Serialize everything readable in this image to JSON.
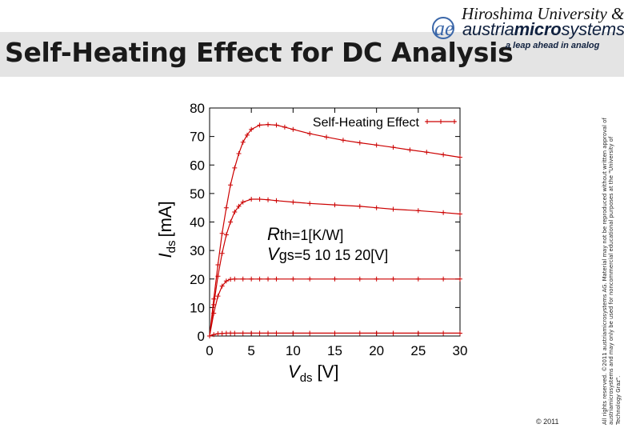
{
  "slide": {
    "title": "Self-Heating Effect for DC Analysis",
    "logo": {
      "university": "Hiroshima University &",
      "company_regular": "austria",
      "company_bold": "micro",
      "company_suffix": "systems",
      "tagline": "a leap ahead in analog",
      "monogram": "ae",
      "brand_color": "#10213f",
      "mark_color": "#3b67a9"
    },
    "side_notice": "All rights reserved. ©2011 austriamicrosystems AG. Material may not be reproduced without written approval of austriamicrosystems and may only be used for noncommercial educational purposes at the \"University of Technology Graz\".",
    "footer": {
      "copyright": "© 2011",
      "line_color": "#1a3e86"
    }
  },
  "chart_data": {
    "type": "line",
    "legend": "Self-Heating Effect",
    "legend_position": "top-right",
    "xlabel": "Vds",
    "xlabel_sub": "ds",
    "xlabel_main": "V",
    "xlabel_unit": "[V]",
    "ylabel_main": "I",
    "ylabel_sub": "ds",
    "ylabel_unit": "[mA]",
    "xlim": [
      0,
      30
    ],
    "ylim": [
      0,
      80
    ],
    "xticks": [
      "0",
      "5",
      "10",
      "15",
      "20",
      "25",
      "30"
    ],
    "yticks": [
      "0",
      "10",
      "20",
      "30",
      "40",
      "50",
      "60",
      "70",
      "80"
    ],
    "annotation": {
      "rth_symbol": "R",
      "rth_sub": "th",
      "rth_value": "=1[K/W]",
      "vgs_symbol": "V",
      "vgs_sub": "gs",
      "vgs_value": "=5 10 15 20[V]"
    },
    "color": "#cc0000",
    "series": [
      {
        "x": [
          0,
          0.5,
          1,
          1.5,
          2,
          2.5,
          3,
          4,
          5,
          6,
          7,
          8,
          10,
          12,
          15,
          18,
          20,
          22,
          25,
          28,
          30
        ],
        "y": [
          0,
          0.5,
          0.8,
          0.9,
          1.0,
          1.0,
          1.0,
          1.0,
          1.0,
          1.0,
          1.0,
          1.0,
          1.0,
          1.0,
          1.0,
          1.0,
          1.0,
          1.0,
          1.0,
          1.0,
          1.0
        ]
      },
      {
        "x": [
          0,
          0.5,
          1,
          1.5,
          2,
          2.5,
          3,
          4,
          5,
          6,
          7,
          8,
          10,
          12,
          15,
          18,
          20,
          22,
          25,
          28,
          30
        ],
        "y": [
          0,
          8,
          14,
          17.5,
          19.3,
          19.9,
          20,
          20,
          20,
          20,
          20,
          20,
          20,
          20,
          20,
          20,
          20,
          20,
          20,
          20,
          20
        ]
      },
      {
        "x": [
          0,
          0.5,
          1,
          1.5,
          2,
          2.5,
          3,
          3.5,
          4,
          5,
          6,
          7,
          8,
          10,
          12,
          15,
          18,
          20,
          22,
          25,
          28,
          30
        ],
        "y": [
          0,
          11,
          21,
          29,
          35.5,
          40,
          43.5,
          45.5,
          47,
          48,
          48,
          47.8,
          47.5,
          47,
          46.5,
          46,
          45.5,
          45,
          44.5,
          44,
          43.3,
          42.8
        ]
      },
      {
        "x": [
          0,
          0.5,
          1,
          1.5,
          2,
          2.5,
          3,
          3.5,
          4,
          4.5,
          5,
          6,
          7,
          8,
          9,
          10,
          12,
          14,
          16,
          18,
          20,
          22,
          24,
          26,
          28,
          30
        ],
        "y": [
          0,
          13,
          25,
          36,
          45,
          53,
          59,
          64,
          68,
          70.5,
          72.5,
          74,
          74.2,
          74,
          73.3,
          72.5,
          71,
          69.8,
          68.7,
          67.8,
          67,
          66.2,
          65.3,
          64.5,
          63.6,
          62.7
        ]
      }
    ]
  }
}
